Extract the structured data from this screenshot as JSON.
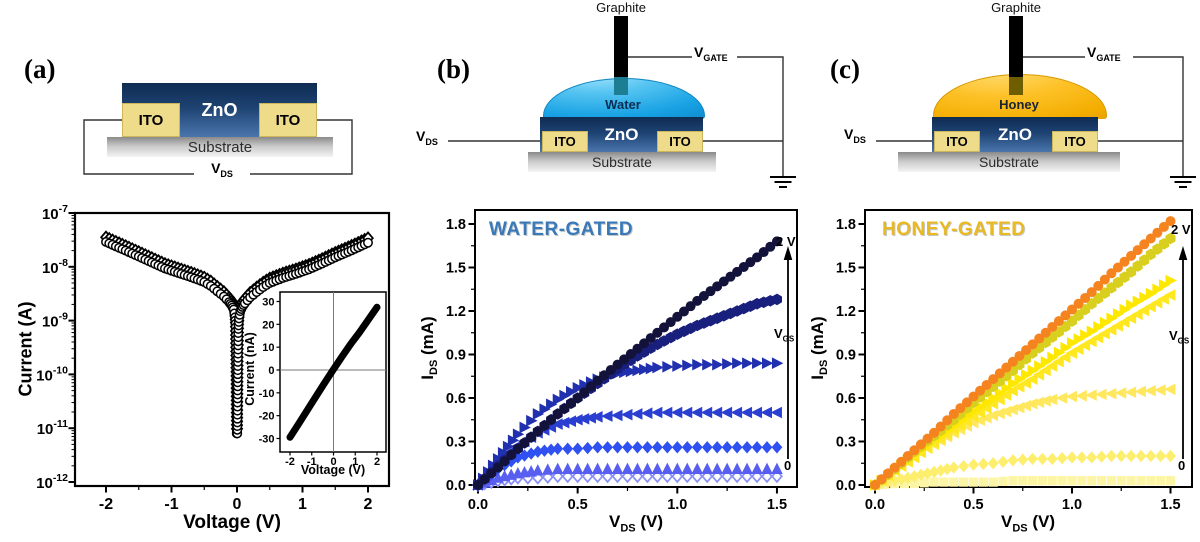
{
  "panels": {
    "a": {
      "label": "(a)",
      "schematic": {
        "zno": "ZnO",
        "ito_left": "ITO",
        "ito_right": "ITO",
        "substrate": "Substrate",
        "vds": {
          "main": "V",
          "sub": "DS"
        }
      }
    },
    "b": {
      "label": "(b)",
      "schematic": {
        "graphite": "Graphite",
        "liquid": "Water",
        "zno": "ZnO",
        "ito_left": "ITO",
        "ito_right": "ITO",
        "substrate": "Substrate",
        "vds": {
          "main": "V",
          "sub": "DS"
        },
        "vgate": {
          "main": "V",
          "sub": "GATE"
        }
      }
    },
    "c": {
      "label": "(c)",
      "schematic": {
        "graphite": "Graphite",
        "liquid": "Honey",
        "zno": "ZnO",
        "ito_left": "ITO",
        "ito_right": "ITO",
        "substrate": "Substrate",
        "vds": {
          "main": "V",
          "sub": "DS"
        },
        "vgate": {
          "main": "V",
          "sub": "GATE"
        }
      }
    }
  },
  "chart_data": [
    {
      "id": "two-terminal-iv",
      "type": "scatter",
      "y_scale": "log",
      "xlabel": "Voltage (V)",
      "ylabel": "Current (A)",
      "x_ticks": [
        -2,
        -1,
        0,
        1,
        2
      ],
      "y_tick_exponents": [
        -7,
        -8,
        -9,
        -10,
        -11,
        -12
      ],
      "xlim": [
        -2.45,
        2.3
      ],
      "ylim_exponents": [
        -12,
        -7
      ],
      "series": [
        {
          "name": "sweep-branch-negative",
          "marker": "circle-open",
          "color": "#000000",
          "points": [
            [
              -2.0,
              2.9e-08
            ],
            [
              -1.85,
              2.4e-08
            ],
            [
              -1.7,
              2e-08
            ],
            [
              -1.5,
              1.55e-08
            ],
            [
              -1.3,
              1.2e-08
            ],
            [
              -1.1,
              9.3e-09
            ],
            [
              -0.9,
              7.7e-09
            ],
            [
              -0.7,
              6.4e-09
            ],
            [
              -0.5,
              5.2e-09
            ],
            [
              -0.4,
              4.4e-09
            ],
            [
              -0.3,
              3.5e-09
            ],
            [
              -0.2,
              2.8e-09
            ],
            [
              -0.12,
              2.2e-09
            ],
            [
              -0.08,
              1.9e-09
            ],
            [
              -0.05,
              1.6e-09
            ],
            [
              -0.03,
              1.15e-09
            ],
            [
              -0.02,
              7.5e-10
            ],
            [
              -0.012,
              1.3e-10
            ],
            [
              -0.006,
              1.6e-11
            ],
            [
              -0.004,
              8e-12
            ]
          ]
        },
        {
          "name": "sweep-branch-positive",
          "marker": "circle-open",
          "color": "#000000",
          "points": [
            [
              0.004,
              8e-12
            ],
            [
              0.006,
              1.5e-11
            ],
            [
              0.012,
              1.2e-10
            ],
            [
              0.02,
              7e-10
            ],
            [
              0.03,
              1.1e-09
            ],
            [
              0.05,
              1.5e-09
            ],
            [
              0.08,
              1.8e-09
            ],
            [
              0.12,
              2.1e-09
            ],
            [
              0.2,
              2.7e-09
            ],
            [
              0.3,
              3.4e-09
            ],
            [
              0.4,
              4.2e-09
            ],
            [
              0.5,
              5e-09
            ],
            [
              0.7,
              6.2e-09
            ],
            [
              0.9,
              7.4e-09
            ],
            [
              1.1,
              9e-09
            ],
            [
              1.3,
              1.15e-08
            ],
            [
              1.5,
              1.5e-08
            ],
            [
              1.7,
              1.9e-08
            ],
            [
              1.85,
              2.3e-08
            ],
            [
              2.0,
              2.8e-08
            ]
          ]
        }
      ],
      "second_sweep_offset_factor": 1.22,
      "inset": {
        "type": "line",
        "xlabel": "Voltage (V)",
        "ylabel": "Current (nA)",
        "x_ticks": [
          -2,
          -1,
          0,
          1,
          2
        ],
        "y_ticks": [
          30,
          20,
          10,
          0,
          -10,
          -20,
          -30
        ],
        "xlim": [
          -2.5,
          2.5
        ],
        "ylim": [
          -35,
          35
        ],
        "line": [
          [
            -2,
            -29.5
          ],
          [
            -1.6,
            -23.5
          ],
          [
            -1.2,
            -17.5
          ],
          [
            -0.8,
            -11.5
          ],
          [
            -0.4,
            -5.5
          ],
          [
            0,
            0.3
          ],
          [
            0.4,
            6
          ],
          [
            0.8,
            11.5
          ],
          [
            1.2,
            16.5
          ],
          [
            1.6,
            22
          ],
          [
            2,
            27.5
          ]
        ]
      }
    },
    {
      "id": "water-gated-output",
      "type": "scatter",
      "title": "WATER-GATED",
      "title_color": "#3a79b8",
      "xlabel": {
        "pre": "V",
        "sub": "DS",
        "post": " (V)"
      },
      "ylabel": {
        "pre": "I",
        "sub": "DS",
        "post": " (mA)"
      },
      "x_ticks": [
        0,
        0.5,
        1,
        1.5
      ],
      "y_ticks": [
        0,
        0.3,
        0.6,
        0.9,
        1.2,
        1.5,
        1.8
      ],
      "xlim": [
        0,
        1.6
      ],
      "ylim": [
        0,
        1.9
      ],
      "gate_arrow": {
        "top": "2 V",
        "bottom": "0",
        "label": {
          "main": "V",
          "sub": "GS"
        }
      },
      "x_start": 0,
      "x_step": 0.1,
      "series": [
        {
          "name": "curve-1",
          "label_in_figure": "2 V",
          "marker": "circle",
          "color": "#13123a",
          "values": [
            0,
            0.12,
            0.25,
            0.37,
            0.49,
            0.6,
            0.72,
            0.83,
            0.94,
            1.05,
            1.16,
            1.27,
            1.37,
            1.47,
            1.57,
            1.68
          ]
        },
        {
          "name": "curve-2",
          "label_in_figure": null,
          "marker": "hexagon",
          "color": "#191f7d",
          "values": [
            0,
            0.13,
            0.25,
            0.37,
            0.49,
            0.6,
            0.7,
            0.8,
            0.89,
            0.97,
            1.04,
            1.1,
            1.15,
            1.2,
            1.25,
            1.28
          ]
        },
        {
          "name": "curve-3",
          "label_in_figure": null,
          "marker": "tri-right",
          "color": "#2030ae",
          "values": [
            0,
            0.18,
            0.35,
            0.49,
            0.59,
            0.67,
            0.73,
            0.77,
            0.79,
            0.81,
            0.82,
            0.83,
            0.83,
            0.84,
            0.84,
            0.84
          ]
        },
        {
          "name": "curve-4",
          "label_in_figure": null,
          "marker": "tri-left",
          "color": "#2a3ed2",
          "values": [
            0,
            0.15,
            0.27,
            0.36,
            0.42,
            0.45,
            0.47,
            0.48,
            0.49,
            0.5,
            0.5,
            0.5,
            0.5,
            0.5,
            0.5,
            0.5
          ]
        },
        {
          "name": "curve-5",
          "label_in_figure": null,
          "marker": "diamond",
          "color": "#2f51f2",
          "values": [
            0,
            0.11,
            0.19,
            0.23,
            0.25,
            0.25,
            0.26,
            0.26,
            0.26,
            0.26,
            0.26,
            0.26,
            0.26,
            0.26,
            0.26,
            0.26
          ]
        },
        {
          "name": "curve-6",
          "label_in_figure": null,
          "marker": "tri-up",
          "color": "#585ef0",
          "values": [
            0,
            0.05,
            0.08,
            0.1,
            0.11,
            0.11,
            0.11,
            0.11,
            0.11,
            0.11,
            0.11,
            0.11,
            0.11,
            0.11,
            0.11,
            0.11
          ]
        },
        {
          "name": "curve-7",
          "label_in_figure": "0",
          "marker": "diamond-open",
          "color": "#8890f5",
          "values": [
            0,
            0.03,
            0.05,
            0.05,
            0.06,
            0.06,
            0.06,
            0.06,
            0.06,
            0.06,
            0.06,
            0.06,
            0.06,
            0.06,
            0.06,
            0.06
          ]
        }
      ]
    },
    {
      "id": "honey-gated-output",
      "type": "scatter",
      "title": "HONEY-GATED",
      "title_color": "#e9b922",
      "xlabel": {
        "pre": "V",
        "sub": "DS",
        "post": " (V)"
      },
      "ylabel": {
        "pre": "I",
        "sub": "DS",
        "post": " (mA)"
      },
      "x_ticks": [
        0,
        0.5,
        1,
        1.5
      ],
      "y_ticks": [
        0,
        0.3,
        0.6,
        0.9,
        1.2,
        1.5,
        1.8
      ],
      "xlim": [
        0,
        1.6
      ],
      "ylim": [
        0,
        1.9
      ],
      "gate_arrow": {
        "top": "2 V",
        "bottom": "0",
        "label": {
          "main": "V",
          "sub": "GS"
        }
      },
      "x_start": 0,
      "x_step": 0.1,
      "series": [
        {
          "name": "curve-1",
          "label_in_figure": "2 V",
          "marker": "circle",
          "color": "#f5831f",
          "values": [
            0,
            0.12,
            0.24,
            0.36,
            0.49,
            0.61,
            0.73,
            0.85,
            0.97,
            1.09,
            1.21,
            1.33,
            1.46,
            1.58,
            1.7,
            1.82
          ]
        },
        {
          "name": "curve-2",
          "label_in_figure": null,
          "marker": "hexagon",
          "color": "#d8cf1e",
          "values": [
            0,
            0.11,
            0.23,
            0.34,
            0.45,
            0.57,
            0.68,
            0.79,
            0.91,
            1.02,
            1.13,
            1.25,
            1.36,
            1.47,
            1.59,
            1.7
          ]
        },
        {
          "name": "curve-3",
          "label_in_figure": null,
          "marker": "tri-right",
          "color": "#ffe800",
          "values": [
            0,
            0.1,
            0.21,
            0.31,
            0.41,
            0.51,
            0.6,
            0.7,
            0.79,
            0.88,
            0.98,
            1.06,
            1.15,
            1.24,
            1.32,
            1.41
          ]
        },
        {
          "name": "curve-4",
          "label_in_figure": null,
          "marker": "tri-left",
          "color": "#ffe81f",
          "values": [
            0,
            0.1,
            0.19,
            0.29,
            0.38,
            0.47,
            0.56,
            0.65,
            0.73,
            0.82,
            0.91,
            0.99,
            1.07,
            1.15,
            1.23,
            1.31
          ]
        },
        {
          "name": "curve-5",
          "label_in_figure": null,
          "marker": "tri-left",
          "color": "#ffe75e",
          "values": [
            0,
            0.1,
            0.2,
            0.28,
            0.36,
            0.43,
            0.48,
            0.52,
            0.56,
            0.59,
            0.61,
            0.62,
            0.63,
            0.64,
            0.65,
            0.66
          ]
        },
        {
          "name": "curve-6",
          "label_in_figure": null,
          "marker": "diamond",
          "color": "#fdee6e",
          "values": [
            0,
            0.03,
            0.06,
            0.09,
            0.12,
            0.14,
            0.15,
            0.17,
            0.18,
            0.18,
            0.19,
            0.19,
            0.2,
            0.2,
            0.2,
            0.2
          ]
        },
        {
          "name": "curve-7",
          "label_in_figure": "0",
          "marker": "square",
          "color": "#fcf5a6",
          "values": [
            0,
            0.01,
            0.01,
            0.02,
            0.02,
            0.02,
            0.02,
            0.03,
            0.03,
            0.03,
            0.03,
            0.03,
            0.03,
            0.03,
            0.03,
            0.03
          ]
        }
      ]
    }
  ]
}
